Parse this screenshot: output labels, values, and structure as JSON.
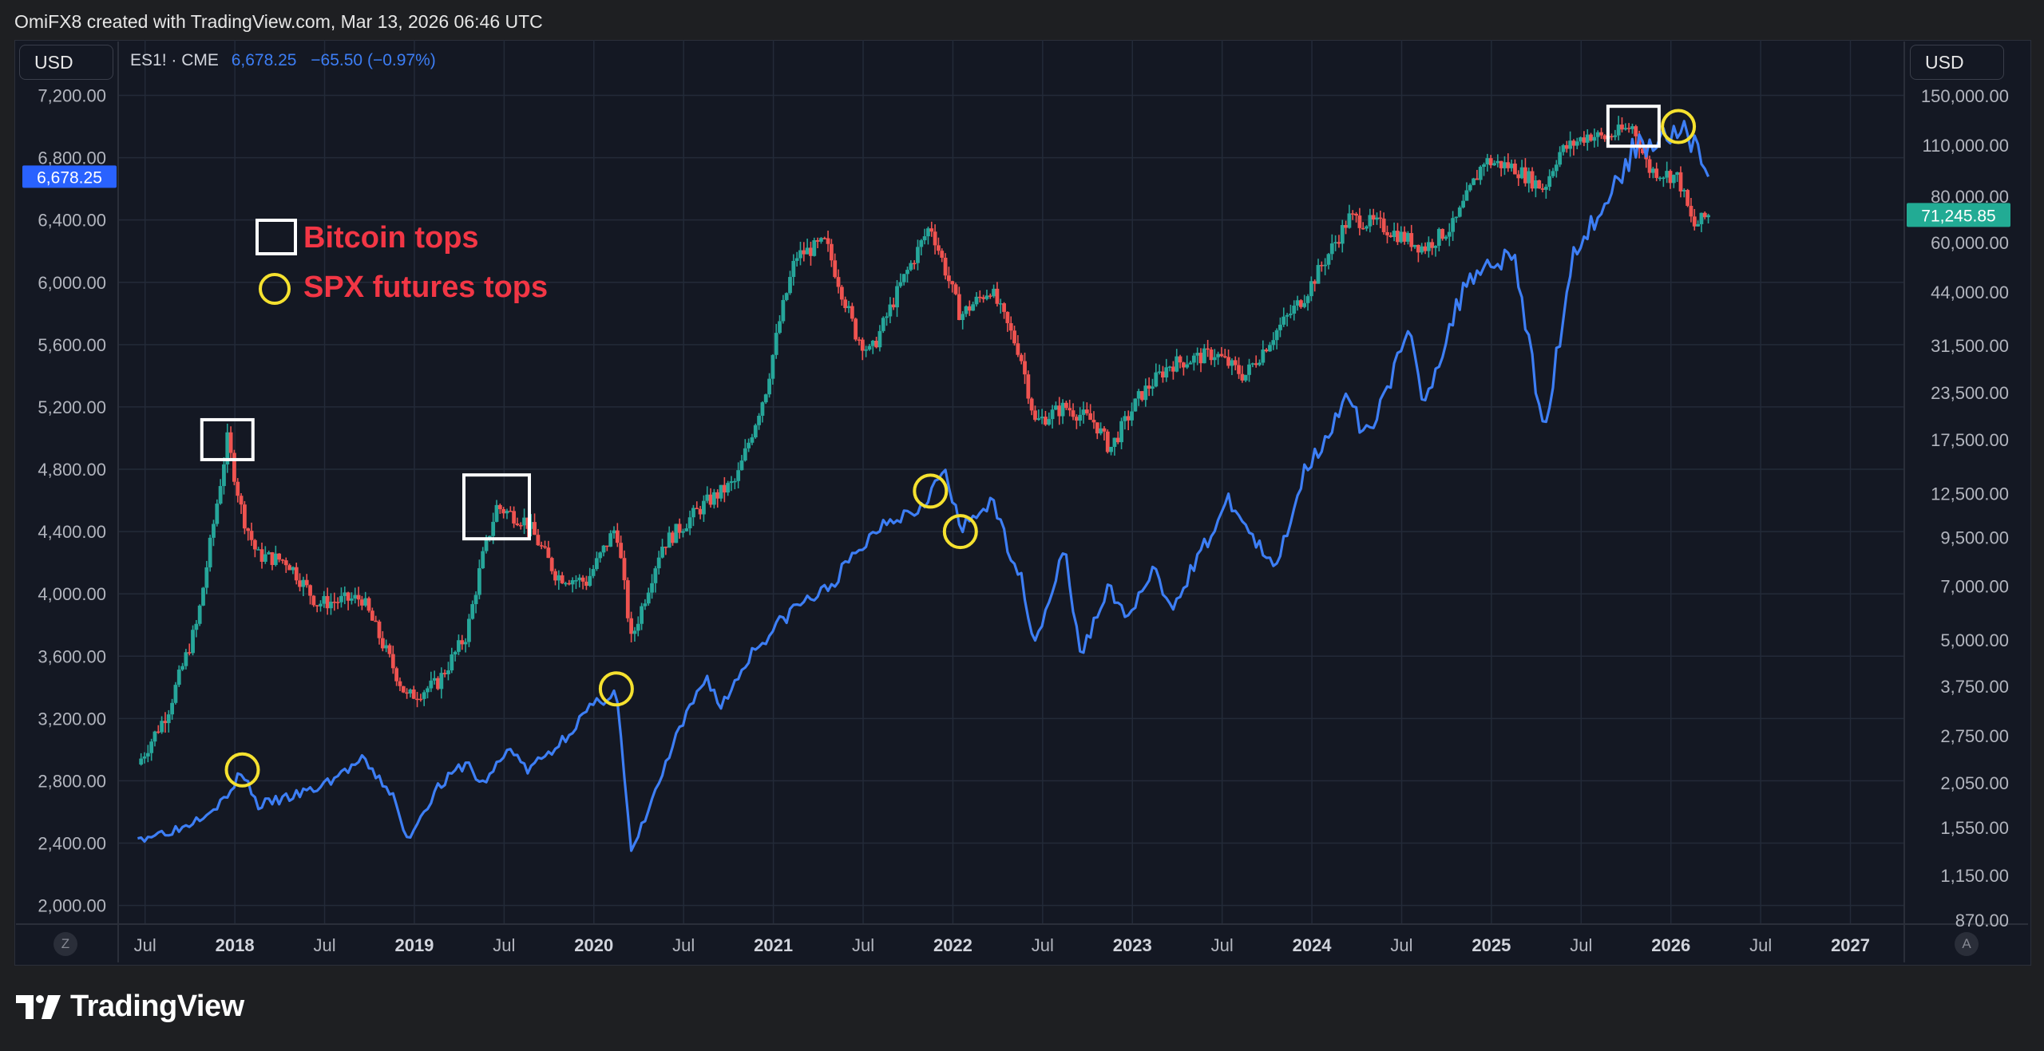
{
  "header": {
    "credit": "OmiFX8 created with TradingView.com, Mar 13, 2026 06:46 UTC"
  },
  "left_currency": "USD",
  "right_currency": "USD",
  "legend": {
    "symbol": "ES1! · CME",
    "value": "6,678.25",
    "change": "−65.50 (−0.97%)"
  },
  "buttons": {
    "left": "Z",
    "right": "A"
  },
  "footer": {
    "brand": "TradingView"
  },
  "colors": {
    "background": "#141823",
    "grid": "#232a38",
    "spx_line": "#3d7ef5",
    "candle_up": "#26a69a",
    "candle_down": "#ef5350",
    "annotation_text": "#f23645",
    "circle_marker": "#f5e12f",
    "box_marker": "#ffffff",
    "left_badge": "#2962ff",
    "right_badge": "#22ab94"
  },
  "chart_data": {
    "type": "line",
    "x_ticks": [
      "Jul",
      "2018",
      "Jul",
      "2019",
      "Jul",
      "2020",
      "Jul",
      "2021",
      "Jul",
      "2022",
      "Jul",
      "2023",
      "Jul",
      "2024",
      "Jul",
      "2025",
      "Jul",
      "2026",
      "Jul",
      "2027"
    ],
    "left_axis": {
      "ticks": [
        "7,200.00",
        "6,800.00",
        "6,400.00",
        "6,000.00",
        "5,600.00",
        "5,200.00",
        "4,800.00",
        "4,400.00",
        "4,000.00",
        "3,600.00",
        "3,200.00",
        "2,800.00",
        "2,400.00",
        "2,000.00"
      ],
      "ylim": [
        1880,
        7300
      ],
      "last_value_badge": "6,678.25"
    },
    "right_axis": {
      "scale": "log",
      "ticks": [
        "150,000.00",
        "110,000.00",
        "80,000.00",
        "60,000.00",
        "44,000.00",
        "31,500.00",
        "23,500.00",
        "17,500.00",
        "12,500.00",
        "9,500.00",
        "7,000.00",
        "5,000.00",
        "3,750.00",
        "2,750.00",
        "2,050.00",
        "1,550.00",
        "1,150.00",
        "870.00"
      ],
      "last_value_badge": "71,245.85"
    },
    "series": [
      {
        "name": "ES1! · CME",
        "axis": "left",
        "x": [
          "2017-06",
          "2017-09",
          "2017-12",
          "2018-01",
          "2018-02",
          "2018-04",
          "2018-06",
          "2018-09",
          "2018-11",
          "2018-12",
          "2019-02",
          "2019-04",
          "2019-05",
          "2019-07",
          "2019-08",
          "2019-10",
          "2019-12",
          "2020-02",
          "2020-03",
          "2020-06",
          "2020-08",
          "2020-09",
          "2020-11",
          "2020-12",
          "2021-02",
          "2021-04",
          "2021-06",
          "2021-08",
          "2021-10",
          "2021-12",
          "2022-01",
          "2022-03",
          "2022-05",
          "2022-06",
          "2022-08",
          "2022-09",
          "2022-11",
          "2022-12",
          "2023-02",
          "2023-03",
          "2023-07",
          "2023-10",
          "2023-12",
          "2024-03",
          "2024-04",
          "2024-07",
          "2024-08",
          "2024-11",
          "2024-12",
          "2025-02",
          "2025-04",
          "2025-06",
          "2025-08",
          "2025-10",
          "2025-12",
          "2026-01",
          "2026-02",
          "2026-03"
        ],
        "values": [
          2430,
          2500,
          2690,
          2870,
          2640,
          2690,
          2750,
          2930,
          2720,
          2420,
          2750,
          2920,
          2770,
          3020,
          2860,
          3020,
          3240,
          3390,
          2330,
          3070,
          3480,
          3270,
          3620,
          3720,
          3920,
          4020,
          4250,
          4480,
          4540,
          4780,
          4400,
          4600,
          4120,
          3690,
          4290,
          3600,
          4060,
          3830,
          4150,
          3900,
          4600,
          4140,
          4790,
          5260,
          4990,
          5660,
          5240,
          6050,
          6100,
          6200,
          5020,
          6200,
          6480,
          6850,
          6950,
          7000,
          6900,
          6678.25
        ]
      },
      {
        "name": "BTC",
        "axis": "right",
        "x": [
          "2017-06",
          "2017-08",
          "2017-10",
          "2017-12",
          "2018-01",
          "2018-02",
          "2018-04",
          "2018-06",
          "2018-09",
          "2018-11",
          "2018-12",
          "2019-02",
          "2019-04",
          "2019-05",
          "2019-06",
          "2019-08",
          "2019-10",
          "2019-12",
          "2020-02",
          "2020-03",
          "2020-05",
          "2020-08",
          "2020-10",
          "2020-12",
          "2021-01",
          "2021-02",
          "2021-04",
          "2021-06",
          "2021-07",
          "2021-09",
          "2021-11",
          "2022-01",
          "2022-03",
          "2022-05",
          "2022-06",
          "2022-08",
          "2022-10",
          "2022-11",
          "2023-01",
          "2023-03",
          "2023-06",
          "2023-08",
          "2023-10",
          "2023-12",
          "2024-03",
          "2024-05",
          "2024-08",
          "2024-10",
          "2024-12",
          "2025-02",
          "2025-04",
          "2025-05",
          "2025-07",
          "2025-08",
          "2025-10",
          "2025-11",
          "2026-01",
          "2026-02",
          "2026-03"
        ],
        "values": [
          2300,
          3200,
          5600,
          17500,
          11000,
          8500,
          8200,
          6300,
          6500,
          4300,
          3500,
          3800,
          5200,
          8200,
          11500,
          10500,
          7500,
          7200,
          10200,
          5000,
          9000,
          11800,
          13500,
          24000,
          38000,
          55000,
          60000,
          34000,
          30000,
          46000,
          67000,
          38000,
          45000,
          30000,
          19500,
          21500,
          19500,
          16500,
          23000,
          28000,
          30000,
          26000,
          34000,
          43000,
          70000,
          67000,
          58000,
          67000,
          100000,
          96000,
          84000,
          105000,
          118000,
          115000,
          124000,
          95000,
          90000,
          66000,
          71245.85
        ]
      }
    ],
    "annotations": {
      "legend_box_label": "Bitcoin tops",
      "legend_circle_label": "SPX futures tops",
      "bitcoin_tops": [
        "2017-12",
        "2019-06",
        "2025-10"
      ],
      "spx_tops": [
        "2018-01",
        "2020-02",
        "2021-11",
        "2022-01",
        "2026-01"
      ]
    },
    "grid": true
  }
}
